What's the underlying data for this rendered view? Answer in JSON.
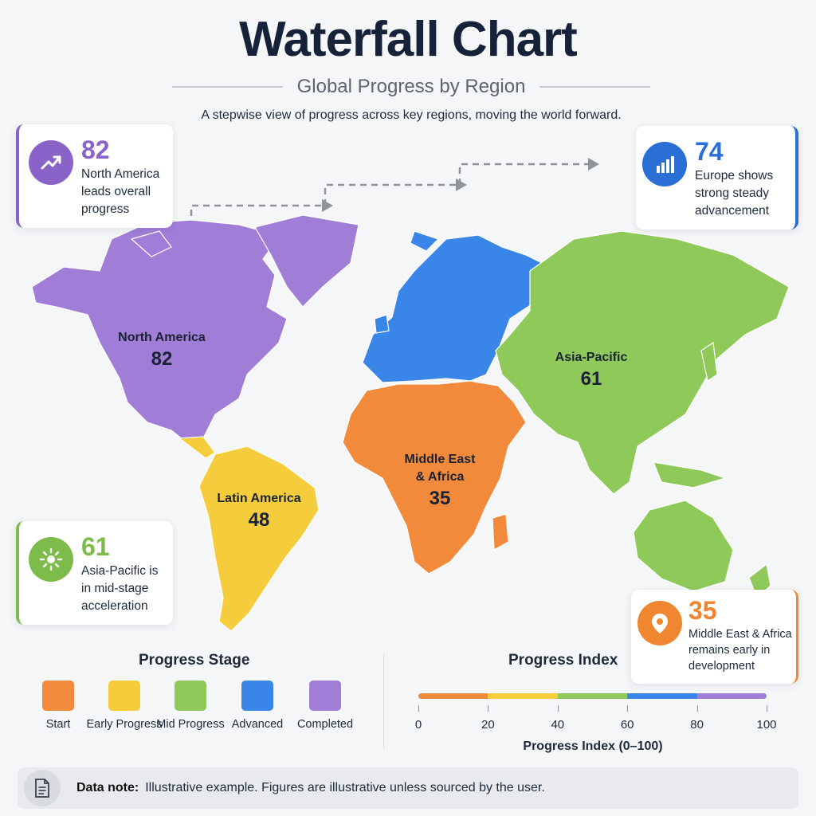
{
  "header": {
    "title": "Waterfall Chart",
    "subtitle": "Global Progress by Region",
    "tagline": "A stepwise view of progress across key regions, moving the world forward."
  },
  "regions": [
    {
      "id": "north-america",
      "name": "North America",
      "value": 82,
      "stage": "Completed",
      "color": "#a07ed8"
    },
    {
      "id": "europe",
      "name": "Europe",
      "value": 74,
      "stage": "Advanced",
      "color": "#3a86e8"
    },
    {
      "id": "asia-pacific",
      "name": "Asia-Pacific",
      "value": 61,
      "stage": "Mid Progress",
      "color": "#8fc95a"
    },
    {
      "id": "latin-america",
      "name": "Latin America",
      "value": 48,
      "stage": "Early Progress",
      "color": "#f5cd3c"
    },
    {
      "id": "middle-east-africa",
      "name": "Middle East\n& Africa",
      "value": 35,
      "stage": "Start",
      "color": "#f28a3c"
    }
  ],
  "callouts": [
    {
      "id": "north-america",
      "value": "82",
      "text": "North America leads overall progress",
      "color": "#8a63c9",
      "icon": "trend-up-icon"
    },
    {
      "id": "europe",
      "value": "74",
      "text": "Europe shows strong steady advancement",
      "color": "#2a6fd6",
      "icon": "bar-chart-icon"
    },
    {
      "id": "asia-pacific",
      "value": "61",
      "text": "Asia-Pacific is in mid-stage acceleration",
      "color": "#7dbb4a",
      "icon": "sun-icon"
    },
    {
      "id": "middle-east-africa",
      "value": "35",
      "text": "Middle East & Africa remains early in development",
      "color": "#f0862f",
      "icon": "location-pin-icon"
    }
  ],
  "legend": {
    "title": "Progress Stage",
    "items": [
      {
        "label": "Start",
        "color": "#f28a3c"
      },
      {
        "label": "Early Progress",
        "color": "#f5cd3c"
      },
      {
        "label": "Mid Progress",
        "color": "#8fc95a"
      },
      {
        "label": "Advanced",
        "color": "#3a86e8"
      },
      {
        "label": "Completed",
        "color": "#a07ed8"
      }
    ]
  },
  "index_scale": {
    "title": "Progress Index",
    "axis_label": "Progress Index (0–100)",
    "ticks": [
      "0",
      "20",
      "40",
      "60",
      "80",
      "100"
    ],
    "colors": [
      "#f28a3c",
      "#f5cd3c",
      "#8fc95a",
      "#3a86e8",
      "#a07ed8"
    ]
  },
  "note": {
    "label": "Data note:",
    "text": "Illustrative example. Figures are illustrative unless sourced by the user."
  }
}
